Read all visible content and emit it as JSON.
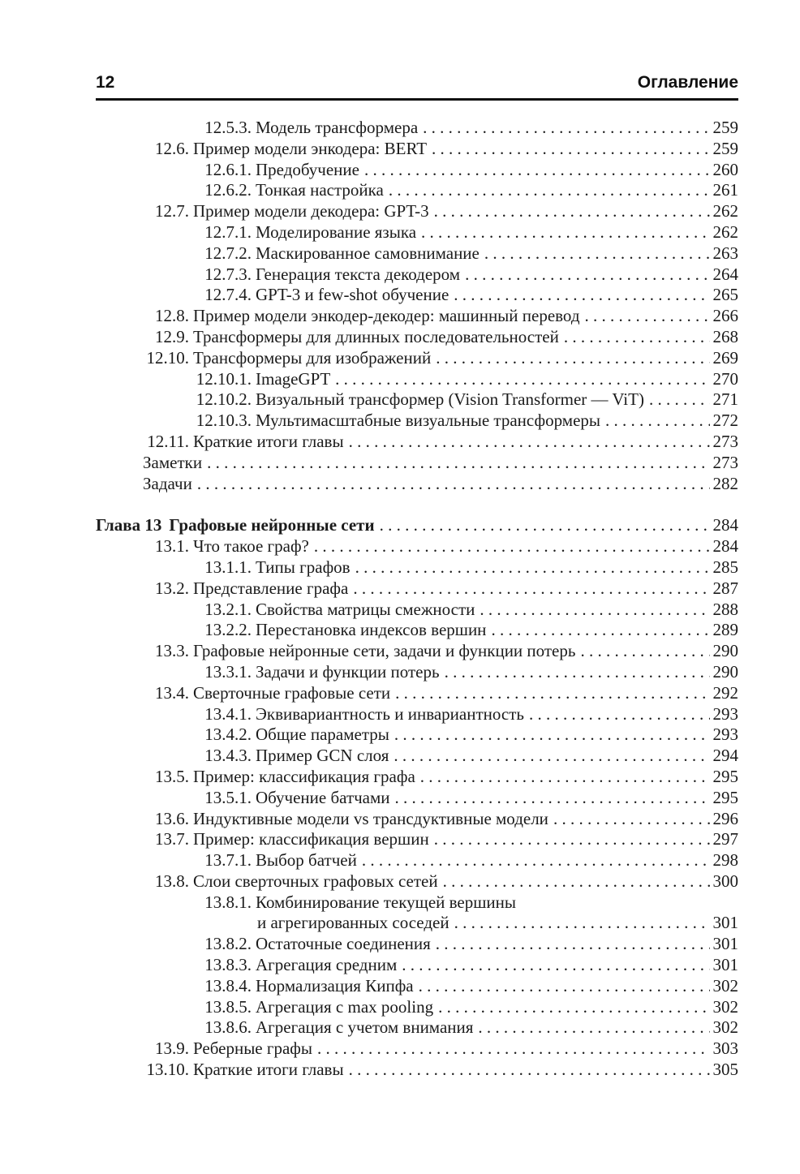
{
  "header": {
    "page_number": "12",
    "title": "Оглавление"
  },
  "toc": {
    "sections": [
      {
        "entries": [
          {
            "level": 3,
            "number": "12.5.3.",
            "title": "Модель трансформера",
            "page": "259"
          },
          {
            "level": 2,
            "number": "12.6.",
            "title": "Пример модели энкодера: BERT",
            "page": "259"
          },
          {
            "level": 3,
            "number": "12.6.1.",
            "title": "Предобучение",
            "page": "260"
          },
          {
            "level": 3,
            "number": "12.6.2.",
            "title": "Тонкая настройка",
            "page": "261"
          },
          {
            "level": 2,
            "number": "12.7.",
            "title": "Пример модели декодера: GPT-3",
            "page": "262"
          },
          {
            "level": 3,
            "number": "12.7.1.",
            "title": "Моделирование языка",
            "page": "262"
          },
          {
            "level": 3,
            "number": "12.7.2.",
            "title": "Маскированное самовнимание",
            "page": "263"
          },
          {
            "level": 3,
            "number": "12.7.3.",
            "title": "Генерация текста декодером",
            "page": "264"
          },
          {
            "level": 3,
            "number": "12.7.4.",
            "title": "GPT-3 и few-shot обучение",
            "page": "265"
          },
          {
            "level": 2,
            "number": "12.8.",
            "title": "Пример модели энкодер-декодер: машинный перевод",
            "page": "266"
          },
          {
            "level": 2,
            "number": "12.9.",
            "title": "Трансформеры для длинных последовательностей",
            "page": "268"
          },
          {
            "level": 2,
            "number": "12.10.",
            "title": "Трансформеры для изображений",
            "page": "269"
          },
          {
            "level": 3,
            "number": "12.10.1.",
            "title": "ImageGPT",
            "page": "270"
          },
          {
            "level": 3,
            "number": "12.10.2.",
            "title": "Визуальный трансформер (Vision Transformer — ViT)",
            "page": "271"
          },
          {
            "level": 3,
            "number": "12.10.3.",
            "title": "Мультимасштабные визуальные трансформеры",
            "page": "272"
          },
          {
            "level": 2,
            "number": "12.11.",
            "title": "Краткие итоги главы",
            "page": "273"
          },
          {
            "level": 0,
            "number": "",
            "title": "Заметки",
            "page": "273"
          },
          {
            "level": 0,
            "number": "",
            "title": "Задачи",
            "page": "282"
          }
        ]
      },
      {
        "entries": [
          {
            "level": 1,
            "number": "Глава 13",
            "title": "Графовые нейронные сети",
            "page": "284"
          },
          {
            "level": 2,
            "number": "13.1.",
            "title": "Что такое граф?",
            "page": "284"
          },
          {
            "level": 3,
            "number": "13.1.1.",
            "title": "Типы графов",
            "page": "285"
          },
          {
            "level": 2,
            "number": "13.2.",
            "title": "Представление графа",
            "page": "287"
          },
          {
            "level": 3,
            "number": "13.2.1.",
            "title": "Свойства матрицы смежности",
            "page": "288"
          },
          {
            "level": 3,
            "number": "13.2.2.",
            "title": "Перестановка индексов вершин",
            "page": "289"
          },
          {
            "level": 2,
            "number": "13.3.",
            "title": "Графовые нейронные сети, задачи и функции потерь",
            "page": "290"
          },
          {
            "level": 3,
            "number": "13.3.1.",
            "title": "Задачи и функции потерь",
            "page": "290"
          },
          {
            "level": 2,
            "number": "13.4.",
            "title": "Сверточные графовые сети",
            "page": "292"
          },
          {
            "level": 3,
            "number": "13.4.1.",
            "title": "Эквивариантность и инвариантность",
            "page": "293"
          },
          {
            "level": 3,
            "number": "13.4.2.",
            "title": "Общие параметры",
            "page": "293"
          },
          {
            "level": 3,
            "number": "13.4.3.",
            "title": "Пример GCN слоя",
            "page": "294"
          },
          {
            "level": 2,
            "number": "13.5.",
            "title": "Пример: классификация графа",
            "page": "295"
          },
          {
            "level": 3,
            "number": "13.5.1.",
            "title": "Обучение батчами",
            "page": "295"
          },
          {
            "level": 2,
            "number": "13.6.",
            "title": "Индуктивные модели vs трансдуктивные модели",
            "page": "296"
          },
          {
            "level": 2,
            "number": "13.7.",
            "title": "Пример: классификация вершин",
            "page": "297"
          },
          {
            "level": 3,
            "number": "13.7.1.",
            "title": "Выбор батчей",
            "page": "298"
          },
          {
            "level": 2,
            "number": "13.8.",
            "title": "Слои сверточных графовых сетей",
            "page": "300"
          },
          {
            "level": 3,
            "number": "13.8.1.",
            "title": "Комбинирование текущей вершины",
            "title_line2": "и агрегированных соседей",
            "page": "301",
            "two_lines": true
          },
          {
            "level": 3,
            "number": "13.8.2.",
            "title": "Остаточные соединения",
            "page": "301"
          },
          {
            "level": 3,
            "number": "13.8.3.",
            "title": "Агрегация средним",
            "page": "301"
          },
          {
            "level": 3,
            "number": "13.8.4.",
            "title": "Нормализация Кипфа",
            "page": "302"
          },
          {
            "level": 3,
            "number": "13.8.5.",
            "title": "Агрегация с max pooling",
            "page": "302"
          },
          {
            "level": 3,
            "number": "13.8.6.",
            "title": "Агрегация с учетом внимания",
            "page": "302"
          },
          {
            "level": 2,
            "number": "13.9.",
            "title": "Реберные графы",
            "page": "303"
          },
          {
            "level": 2,
            "number": "13.10.",
            "title": "Краткие итоги главы",
            "page": "305"
          }
        ]
      }
    ]
  }
}
